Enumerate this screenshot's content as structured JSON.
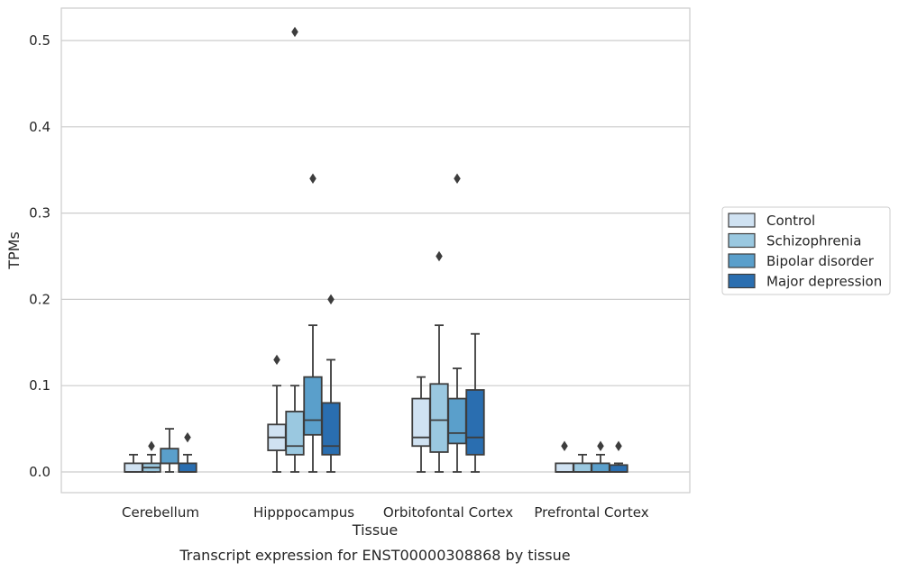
{
  "chart_data": {
    "type": "box",
    "caption": "Transcript expression for ENST00000308868 by tissue",
    "xlabel": "Tissue",
    "ylabel": "TPMs",
    "ylim": [
      -0.025,
      0.537
    ],
    "yticks": [
      0.0,
      0.1,
      0.2,
      0.3,
      0.4,
      0.5
    ],
    "ytick_labels": [
      "0.0",
      "0.1",
      "0.2",
      "0.3",
      "0.4",
      "0.5"
    ],
    "grid": "horizontal",
    "legend_position": "right",
    "categories": [
      "Cerebellum",
      "Hipppocampus",
      "Orbitofontal Cortex",
      "Prefrontal Cortex"
    ],
    "series": [
      {
        "name": "Control",
        "color": "#d0e2f2",
        "boxes": [
          {
            "whisker_low": 0.0,
            "q1": 0.0,
            "median": 0.0,
            "q3": 0.01,
            "whisker_high": 0.02,
            "outliers": []
          },
          {
            "whisker_low": 0.0,
            "q1": 0.025,
            "median": 0.04,
            "q3": 0.055,
            "whisker_high": 0.1,
            "outliers": [
              0.13
            ]
          },
          {
            "whisker_low": 0.0,
            "q1": 0.03,
            "median": 0.04,
            "q3": 0.085,
            "whisker_high": 0.11,
            "outliers": []
          },
          {
            "whisker_low": 0.0,
            "q1": 0.0,
            "median": 0.0,
            "q3": 0.01,
            "whisker_high": 0.01,
            "outliers": [
              0.03
            ]
          }
        ]
      },
      {
        "name": "Schizophrenia",
        "color": "#9ac8e0",
        "boxes": [
          {
            "whisker_low": 0.0,
            "q1": 0.0,
            "median": 0.005,
            "q3": 0.01,
            "whisker_high": 0.02,
            "outliers": [
              0.03
            ]
          },
          {
            "whisker_low": 0.0,
            "q1": 0.02,
            "median": 0.03,
            "q3": 0.07,
            "whisker_high": 0.1,
            "outliers": [
              0.51
            ]
          },
          {
            "whisker_low": 0.0,
            "q1": 0.023,
            "median": 0.06,
            "q3": 0.102,
            "whisker_high": 0.17,
            "outliers": [
              0.25
            ]
          },
          {
            "whisker_low": 0.0,
            "q1": 0.0,
            "median": 0.0,
            "q3": 0.01,
            "whisker_high": 0.02,
            "outliers": []
          }
        ]
      },
      {
        "name": "Bipolar disorder",
        "color": "#5a9fcb",
        "boxes": [
          {
            "whisker_low": 0.0,
            "q1": 0.01,
            "median": 0.01,
            "q3": 0.027,
            "whisker_high": 0.05,
            "outliers": []
          },
          {
            "whisker_low": 0.0,
            "q1": 0.043,
            "median": 0.06,
            "q3": 0.11,
            "whisker_high": 0.17,
            "outliers": [
              0.34
            ]
          },
          {
            "whisker_low": 0.0,
            "q1": 0.033,
            "median": 0.045,
            "q3": 0.085,
            "whisker_high": 0.12,
            "outliers": [
              0.34
            ]
          },
          {
            "whisker_low": 0.0,
            "q1": 0.0,
            "median": 0.0,
            "q3": 0.01,
            "whisker_high": 0.02,
            "outliers": [
              0.03
            ]
          }
        ]
      },
      {
        "name": "Major depression",
        "color": "#2a6eb0",
        "boxes": [
          {
            "whisker_low": 0.0,
            "q1": 0.0,
            "median": 0.0,
            "q3": 0.01,
            "whisker_high": 0.02,
            "outliers": [
              0.04
            ]
          },
          {
            "whisker_low": 0.0,
            "q1": 0.02,
            "median": 0.03,
            "q3": 0.08,
            "whisker_high": 0.13,
            "outliers": [
              0.2
            ]
          },
          {
            "whisker_low": 0.0,
            "q1": 0.02,
            "median": 0.04,
            "q3": 0.095,
            "whisker_high": 0.16,
            "outliers": []
          },
          {
            "whisker_low": 0.0,
            "q1": 0.0,
            "median": 0.0,
            "q3": 0.008,
            "whisker_high": 0.01,
            "outliers": [
              0.03
            ]
          }
        ]
      }
    ]
  }
}
